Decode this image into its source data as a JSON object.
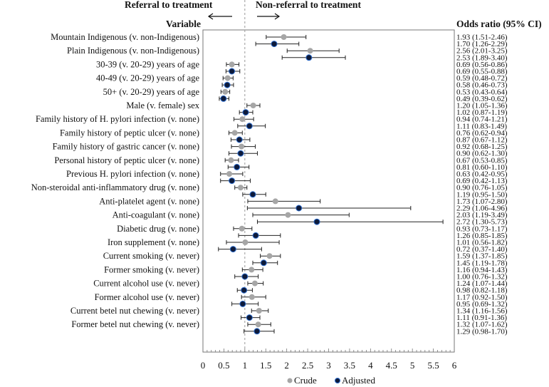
{
  "chart_data": {
    "type": "forest",
    "header_left": "Referral to treatment",
    "header_right": "Non-referral to treatment",
    "variable_header": "Variable",
    "or_header": "Odds ratio (95% CI)",
    "xlim": [
      0,
      6
    ],
    "xticks": [
      "0",
      "0.5",
      "1",
      "1.5",
      "2",
      "2.5",
      "3",
      "3.5",
      "4",
      "4.5",
      "5",
      "5.5",
      "6"
    ],
    "reference_line": 1,
    "legend": [
      {
        "name": "Crude",
        "color": "#a6a6a6"
      },
      {
        "name": "Adjusted",
        "color": "#0d1a3a"
      }
    ],
    "variables": [
      {
        "label": "Mountain Indigenous (v. non-Indigenous)",
        "crude": [
          1.93,
          1.51,
          2.46
        ],
        "adjusted": [
          1.7,
          1.26,
          2.29
        ],
        "crude_text": "1.93 (1.51-2.46)",
        "adjusted_text": "1.70 (1.26-2.29)"
      },
      {
        "label": "Plain Indigenous (v. non-Indigenous)",
        "crude": [
          2.56,
          2.01,
          3.25
        ],
        "adjusted": [
          2.53,
          1.89,
          3.4
        ],
        "crude_text": "2.56 (2.01-3.25)",
        "adjusted_text": "2.53 (1.89-3.40)"
      },
      {
        "label": "30-39 (v. 20-29) years of age",
        "crude": [
          0.69,
          0.56,
          0.86
        ],
        "adjusted": [
          0.69,
          0.55,
          0.88
        ],
        "crude_text": "0.69 (0.56-0.86)",
        "adjusted_text": "0.69 (0.55-0.88)"
      },
      {
        "label": "40-49 (v. 20-29) years of age",
        "crude": [
          0.59,
          0.48,
          0.72
        ],
        "adjusted": [
          0.58,
          0.46,
          0.73
        ],
        "crude_text": "0.59 (0.48-0.72)",
        "adjusted_text": "0.58 (0.46-0.73)"
      },
      {
        "label": "50+ (v. 20-29) years of age",
        "crude": [
          0.53,
          0.43,
          0.64
        ],
        "adjusted": [
          0.49,
          0.39,
          0.62
        ],
        "crude_text": "0.53 (0.43-0.64)",
        "adjusted_text": "0.49 (0.39-0.62)"
      },
      {
        "label": "Male (v. female) sex",
        "crude": [
          1.2,
          1.05,
          1.36
        ],
        "adjusted": [
          1.02,
          0.87,
          1.19
        ],
        "crude_text": "1.20 (1.05-1.36)",
        "adjusted_text": "1.02 (0.87-1.19)"
      },
      {
        "label": "Family history of H. pylori infection (v. none)",
        "crude": [
          0.94,
          0.74,
          1.21
        ],
        "adjusted": [
          1.11,
          0.83,
          1.49
        ],
        "crude_text": "0.94 (0.74-1.21)",
        "adjusted_text": "1.11 (0.83-1.49)"
      },
      {
        "label": "Family history of peptic ulcer (v. none)",
        "crude": [
          0.76,
          0.62,
          0.94
        ],
        "adjusted": [
          0.87,
          0.67,
          1.12
        ],
        "crude_text": "0.76 (0.62-0.94)",
        "adjusted_text": "0.87 (0.67-1.12)"
      },
      {
        "label": "Family history of gastric cancer (v. none)",
        "crude": [
          0.92,
          0.68,
          1.25
        ],
        "adjusted": [
          0.9,
          0.62,
          1.3
        ],
        "crude_text": "0.92 (0.68-1.25)",
        "adjusted_text": "0.90 (0.62-1.30)"
      },
      {
        "label": "Personal history of peptic ulcer (v. none)",
        "crude": [
          0.67,
          0.53,
          0.85
        ],
        "adjusted": [
          0.81,
          0.6,
          1.1
        ],
        "crude_text": "0.67 (0.53-0.85)",
        "adjusted_text": "0.81 (0.60-1.10)"
      },
      {
        "label": "Previous H. pylori infection (v. none)",
        "crude": [
          0.63,
          0.42,
          0.95
        ],
        "adjusted": [
          0.69,
          0.42,
          1.13
        ],
        "crude_text": "0.63 (0.42-0.95)",
        "adjusted_text": "0.69 (0.42-1.13)"
      },
      {
        "label": "Non-steroidal anti-inflammatory drug (v. none)",
        "crude": [
          0.9,
          0.76,
          1.05
        ],
        "adjusted": [
          1.19,
          0.95,
          1.5
        ],
        "crude_text": "0.90 (0.76-1.05)",
        "adjusted_text": "1.19 (0.95-1.50)"
      },
      {
        "label": "Anti-platelet agent (v. none)",
        "crude": [
          1.73,
          1.07,
          2.8
        ],
        "adjusted": [
          2.29,
          1.06,
          4.96
        ],
        "crude_text": "1.73 (1.07-2.80)",
        "adjusted_text": "2.29 (1.06-4.96)"
      },
      {
        "label": "Anti-coagulant (v. none)",
        "crude": [
          2.03,
          1.19,
          3.49
        ],
        "adjusted": [
          2.72,
          1.3,
          5.73
        ],
        "crude_text": "2.03 (1.19-3.49)",
        "adjusted_text": "2.72 (1.30-5.73)"
      },
      {
        "label": "Diabetic drug (v. none)",
        "crude": [
          0.93,
          0.73,
          1.17
        ],
        "adjusted": [
          1.26,
          0.85,
          1.85
        ],
        "crude_text": "0.93 (0.73-1.17)",
        "adjusted_text": "1.26 (0.85-1.85)"
      },
      {
        "label": "Iron supplement (v. none)",
        "crude": [
          1.01,
          0.56,
          1.82
        ],
        "adjusted": [
          0.72,
          0.37,
          1.4
        ],
        "crude_text": "1.01 (0.56-1.82)",
        "adjusted_text": "0.72 (0.37-1.40)"
      },
      {
        "label": "Current smoking (v. never)",
        "crude": [
          1.59,
          1.37,
          1.85
        ],
        "adjusted": [
          1.45,
          1.19,
          1.78
        ],
        "crude_text": "1.59 (1.37-1.85)",
        "adjusted_text": "1.45 (1.19-1.78)"
      },
      {
        "label": "Former smoking (v. never)",
        "crude": [
          1.16,
          0.94,
          1.43
        ],
        "adjusted": [
          1.0,
          0.76,
          1.32
        ],
        "crude_text": "1.16 (0.94-1.43)",
        "adjusted_text": "1.00 (0.76-1.32)"
      },
      {
        "label": "Current alcohol use (v. never)",
        "crude": [
          1.24,
          1.07,
          1.44
        ],
        "adjusted": [
          0.98,
          0.82,
          1.18
        ],
        "crude_text": "1.24 (1.07-1.44)",
        "adjusted_text": "0.98 (0.82-1.18)"
      },
      {
        "label": "Former alcohol use (v. never)",
        "crude": [
          1.17,
          0.92,
          1.5
        ],
        "adjusted": [
          0.95,
          0.69,
          1.32
        ],
        "crude_text": "1.17 (0.92-1.50)",
        "adjusted_text": "0.95 (0.69-1.32)"
      },
      {
        "label": "Current betel nut chewing (v. never)",
        "crude": [
          1.34,
          1.16,
          1.56
        ],
        "adjusted": [
          1.11,
          0.91,
          1.36
        ],
        "crude_text": "1.34 (1.16-1.56)",
        "adjusted_text": "1.11 (0.91-1.36)"
      },
      {
        "label": "Former betel nut chewing (v. never)",
        "crude": [
          1.32,
          1.07,
          1.62
        ],
        "adjusted": [
          1.29,
          0.98,
          1.7
        ],
        "crude_text": "1.32 (1.07-1.62)",
        "adjusted_text": "1.29 (0.98-1.70)"
      }
    ]
  }
}
